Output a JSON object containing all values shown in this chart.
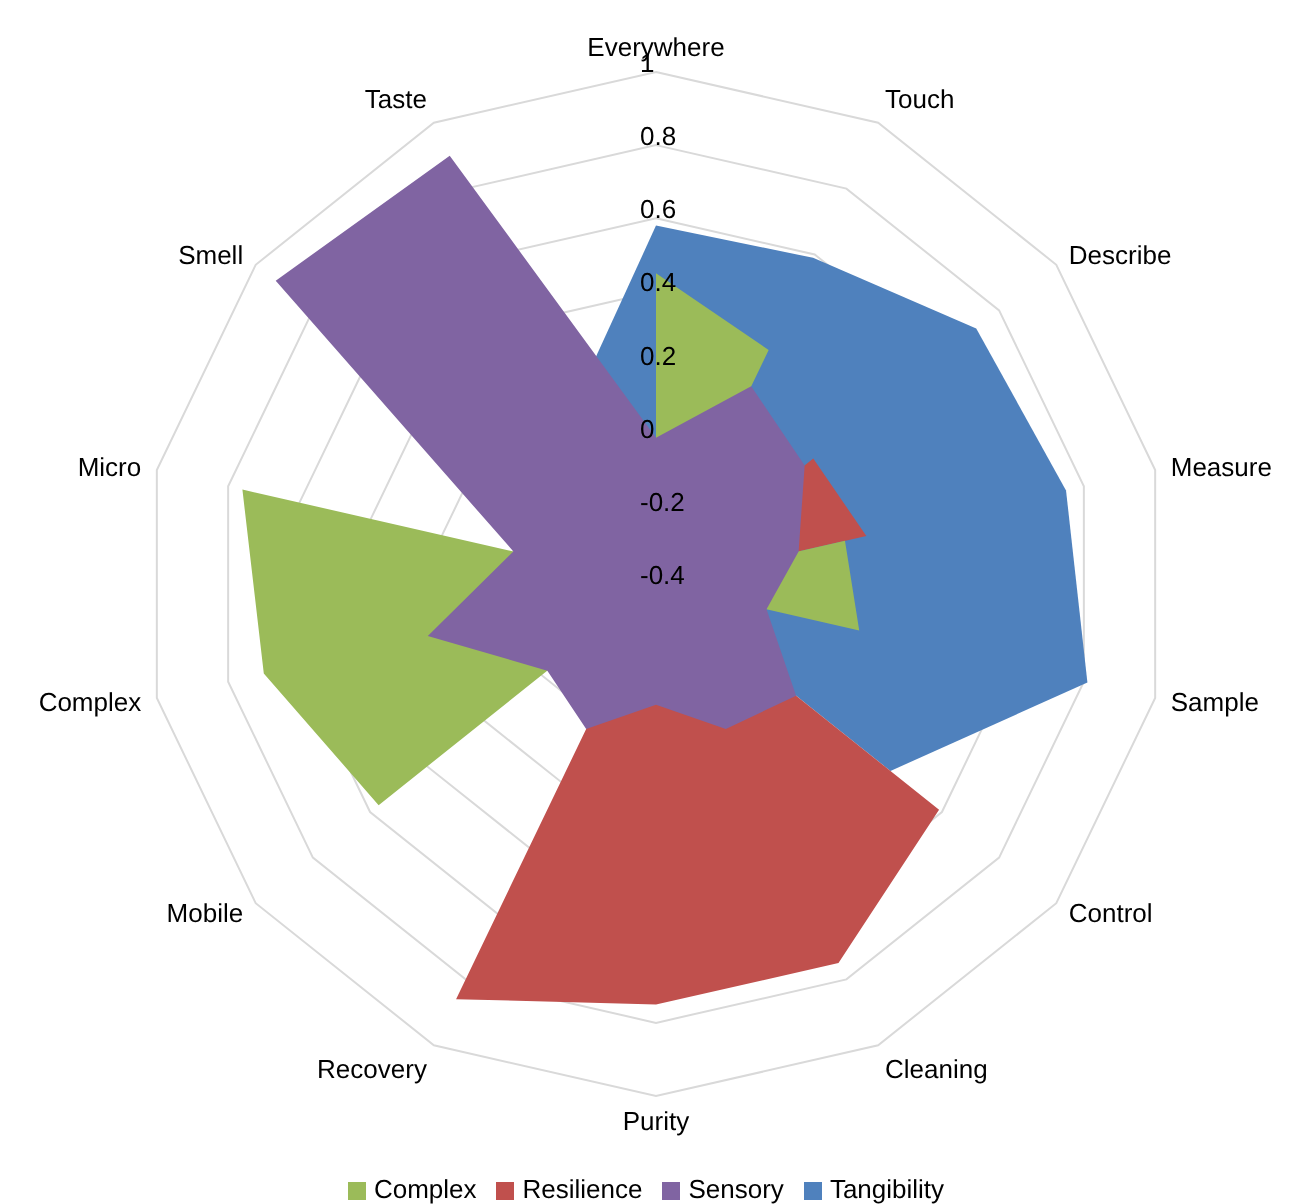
{
  "chart_data": {
    "type": "radar",
    "categories": [
      "Everywhere",
      "Touch",
      "Describe",
      "Measure",
      "Sample",
      "Control",
      "Cleaning",
      "Purity",
      "Recovery",
      "Mobile",
      "Complex",
      "Micro",
      "Smell",
      "Taste"
    ],
    "series": [
      {
        "name": "Tangibility",
        "color": "#4f81bd",
        "values": [
          0.58,
          0.59,
          0.72,
          0.75,
          0.81,
          0.42,
          null,
          null,
          null,
          null,
          null,
          null,
          null,
          0.13
        ]
      },
      {
        "name": "Resilience",
        "color": "#c0504d",
        "values": [
          null,
          null,
          0.15,
          0.19,
          null,
          0.59,
          0.75,
          0.75,
          0.86,
          null,
          null,
          null,
          null,
          null
        ]
      },
      {
        "name": "Complex",
        "color": "#9bbb59",
        "values": [
          0.45,
          0.31,
          null,
          0.13,
          0.17,
          null,
          0.36,
          null,
          null,
          0.57,
          0.7,
          0.76,
          null,
          null
        ]
      },
      {
        "name": "Sensory",
        "color": "#8064a2",
        "values": [
          0,
          0.2,
          0.12,
          0,
          -0.09,
          0.09,
          0.04,
          -0.07,
          0.04,
          -0.02,
          0.24,
          0,
          0.93,
          0.9
        ]
      }
    ],
    "ylim": [
      -0.4,
      1
    ],
    "yticks": [
      -0.4,
      -0.2,
      0,
      0.2,
      0.4,
      0.6,
      0.8,
      1
    ],
    "grid": true,
    "legend": "bottom"
  }
}
